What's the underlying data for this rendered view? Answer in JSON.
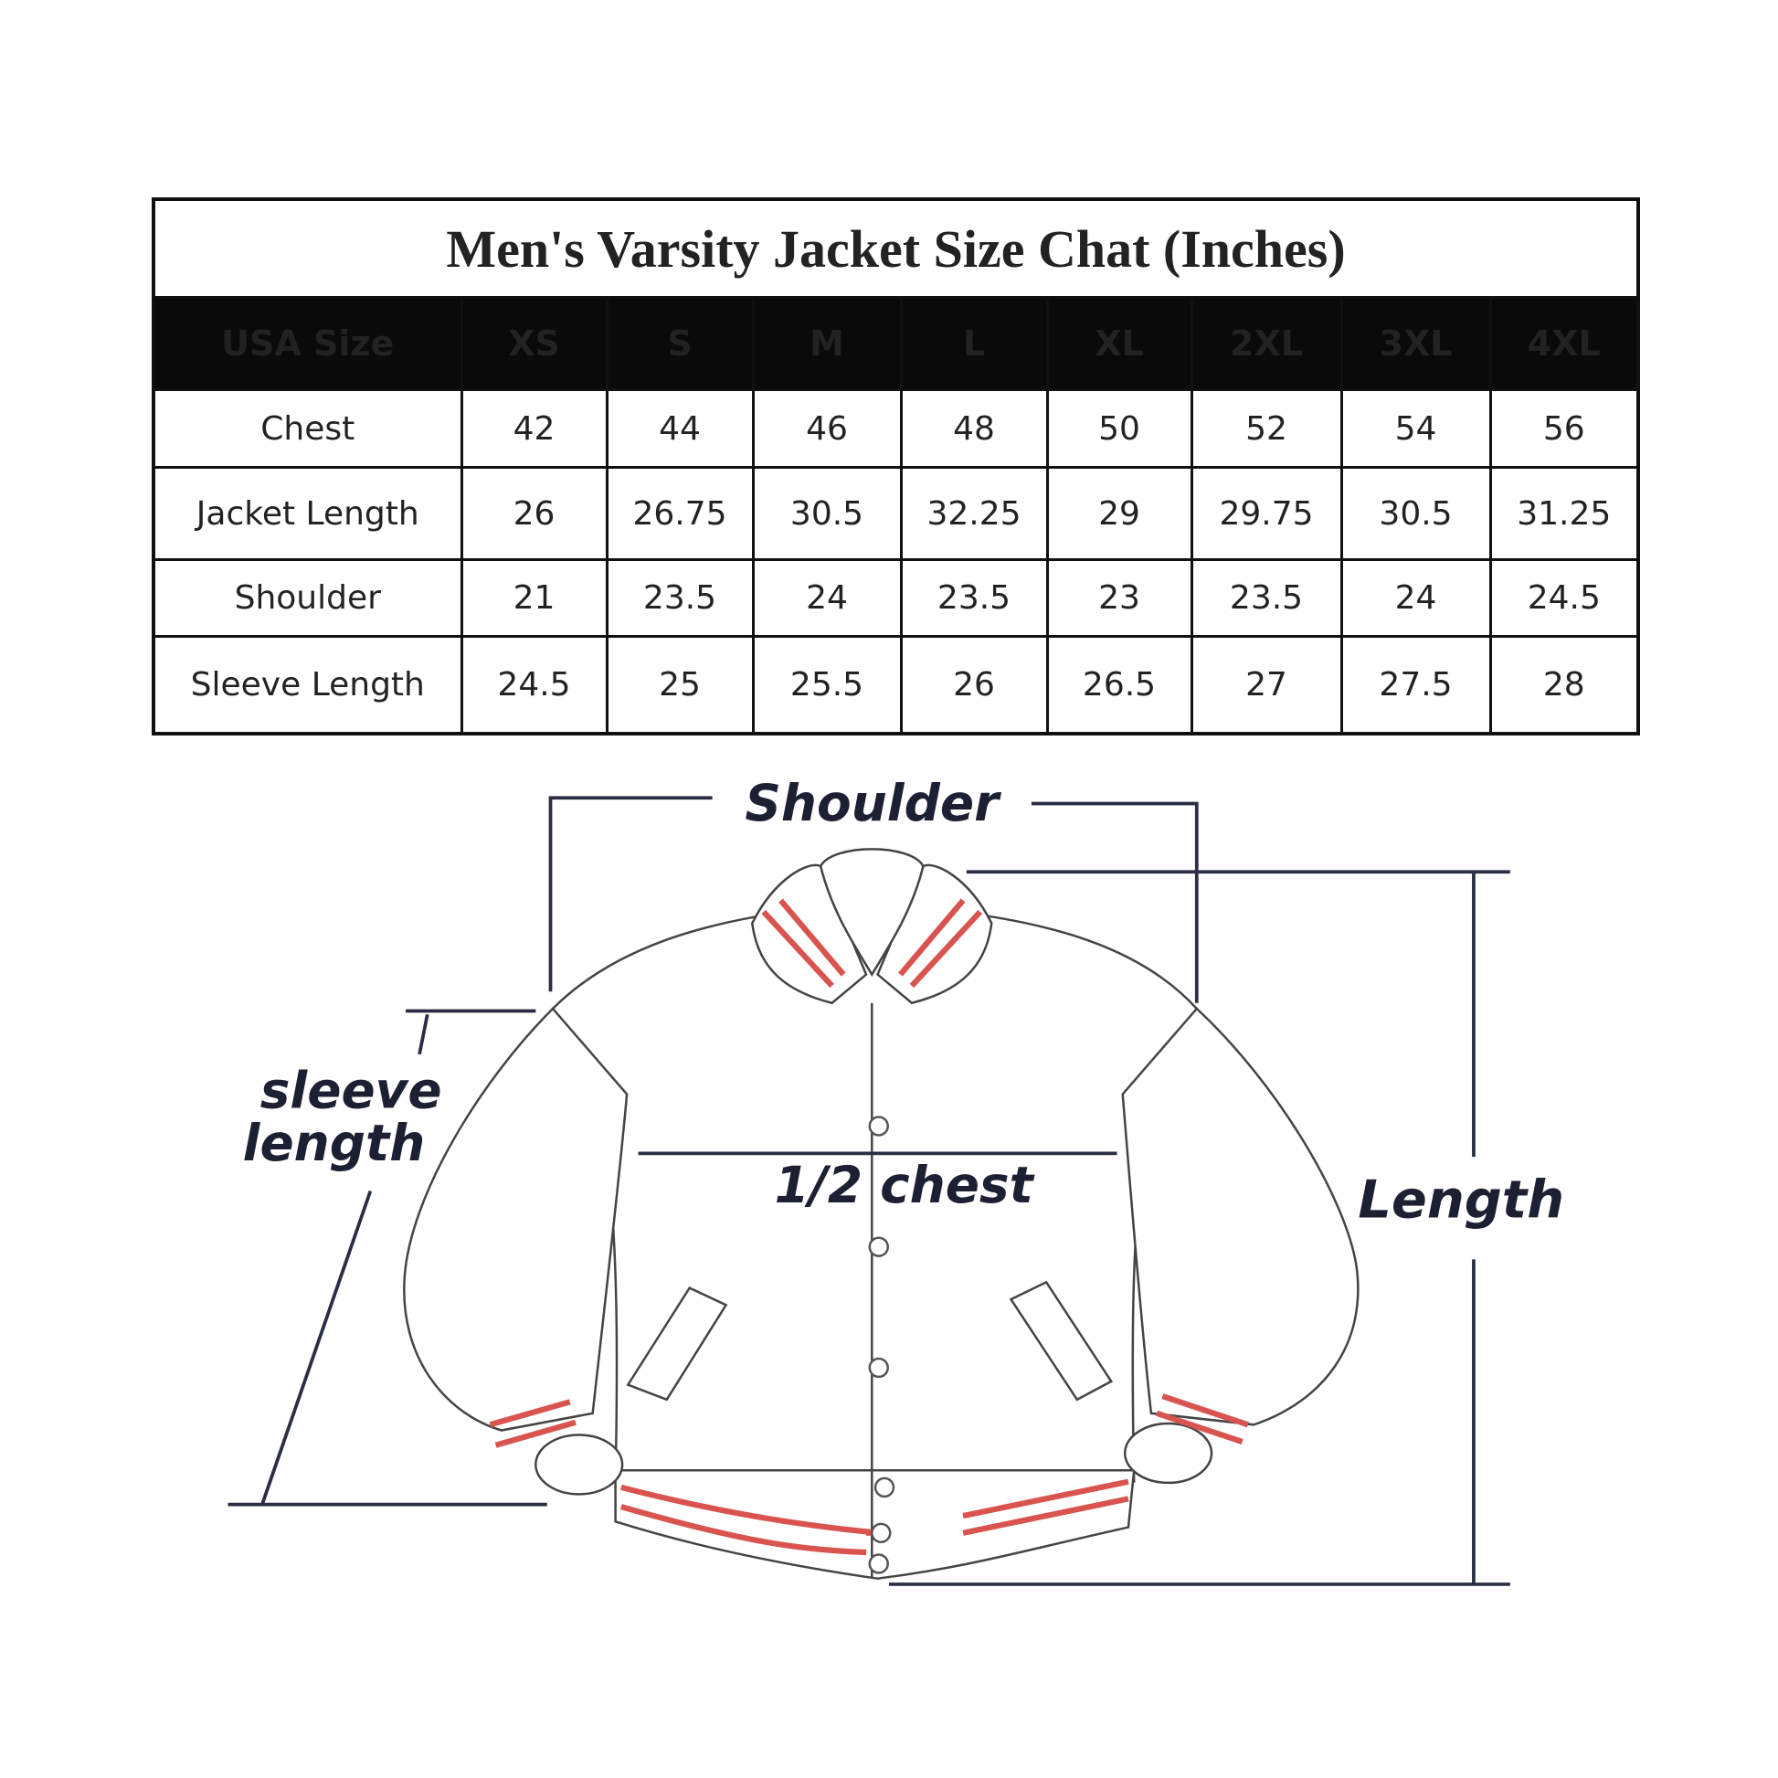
{
  "title": "Men's Varsity Jacket Size Chat (Inches)",
  "header": [
    "USA Size",
    "XS",
    "S",
    "M",
    "L",
    "XL",
    "2XL",
    "3XL",
    "4XL"
  ],
  "rows": [
    {
      "label": "Chest",
      "values": [
        "42",
        "44",
        "46",
        "48",
        "50",
        "52",
        "54",
        "56"
      ]
    },
    {
      "label": "Jacket Length",
      "values": [
        "26",
        "26.75",
        "30.5",
        "32.25",
        "29",
        "29.75",
        "30.5",
        "31.25"
      ]
    },
    {
      "label": "Shoulder",
      "values": [
        "21",
        "23.5",
        "24",
        "23.5",
        "23",
        "23.5",
        "24",
        "24.5"
      ]
    },
    {
      "label": "Sleeve Length",
      "values": [
        "24.5",
        "25",
        "25.5",
        "26",
        "26.5",
        "27",
        "27.5",
        "28"
      ]
    }
  ],
  "diagram": {
    "shoulder_label": "Shoulder",
    "sleeve_label_1": "sleeve",
    "sleeve_label_2": "length",
    "chest_label": "1/2 chest",
    "length_label": "Length",
    "stripe_color": "#d9534f"
  }
}
